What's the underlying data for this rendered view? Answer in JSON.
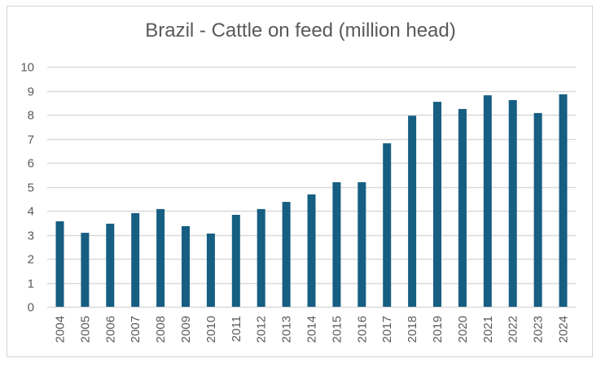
{
  "chart_data": {
    "type": "bar",
    "title": "Brazil - Cattle on feed (million head)",
    "xlabel": "",
    "ylabel": "",
    "ylim": [
      0,
      10
    ],
    "yticks": [
      0,
      1,
      2,
      3,
      4,
      5,
      6,
      7,
      8,
      9,
      10
    ],
    "grid": true,
    "legend": "none",
    "bar_color": "#165e82",
    "gridline_color": "#d9d9d9",
    "categories": [
      "2004",
      "2005",
      "2006",
      "2007",
      "2008",
      "2009",
      "2010",
      "2011",
      "2012",
      "2013",
      "2014",
      "2015",
      "2016",
      "2017",
      "2018",
      "2019",
      "2020",
      "2021",
      "2022",
      "2023",
      "2024"
    ],
    "values": [
      3.56,
      3.08,
      3.46,
      3.9,
      4.07,
      3.36,
      3.05,
      3.83,
      4.07,
      4.37,
      4.68,
      5.19,
      5.19,
      6.81,
      7.96,
      8.54,
      8.24,
      8.81,
      8.61,
      8.07,
      8.85
    ]
  }
}
